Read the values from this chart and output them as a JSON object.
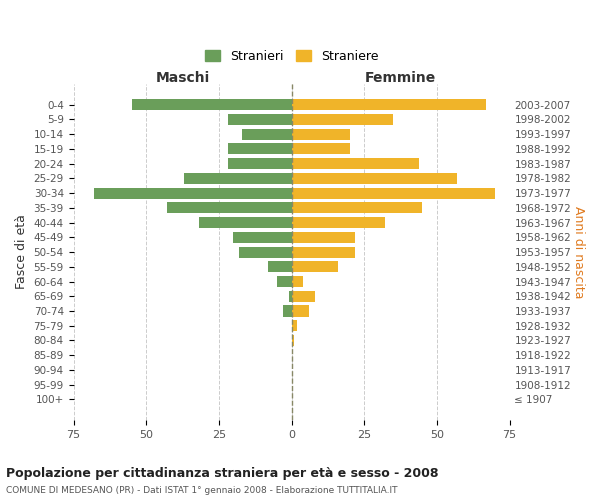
{
  "age_groups": [
    "100+",
    "95-99",
    "90-94",
    "85-89",
    "80-84",
    "75-79",
    "70-74",
    "65-69",
    "60-64",
    "55-59",
    "50-54",
    "45-49",
    "40-44",
    "35-39",
    "30-34",
    "25-29",
    "20-24",
    "15-19",
    "10-14",
    "5-9",
    "0-4"
  ],
  "birth_years": [
    "≤ 1907",
    "1908-1912",
    "1913-1917",
    "1918-1922",
    "1923-1927",
    "1928-1932",
    "1933-1937",
    "1938-1942",
    "1943-1947",
    "1948-1952",
    "1953-1957",
    "1958-1962",
    "1963-1967",
    "1968-1972",
    "1973-1977",
    "1978-1982",
    "1983-1987",
    "1988-1992",
    "1993-1997",
    "1998-2002",
    "2003-2007"
  ],
  "males": [
    0,
    0,
    0,
    0,
    0,
    0,
    3,
    1,
    5,
    8,
    18,
    20,
    32,
    43,
    68,
    37,
    22,
    22,
    17,
    22,
    55
  ],
  "females": [
    0,
    0,
    0,
    0,
    1,
    2,
    6,
    8,
    4,
    16,
    22,
    22,
    32,
    45,
    70,
    57,
    44,
    20,
    20,
    35,
    67
  ],
  "male_color": "#6a9e5a",
  "female_color": "#f0b429",
  "background_color": "#ffffff",
  "grid_color": "#cccccc",
  "title": "Popolazione per cittadinanza straniera per età e sesso - 2008",
  "subtitle": "COMUNE DI MEDESANO (PR) - Dati ISTAT 1° gennaio 2008 - Elaborazione TUTTITALIA.IT",
  "xlabel_left": "Maschi",
  "xlabel_right": "Femmine",
  "ylabel_left": "Fasce di età",
  "ylabel_right": "Anni di nascita",
  "legend_male": "Stranieri",
  "legend_female": "Straniere",
  "xlim": 75,
  "bar_height": 0.75
}
